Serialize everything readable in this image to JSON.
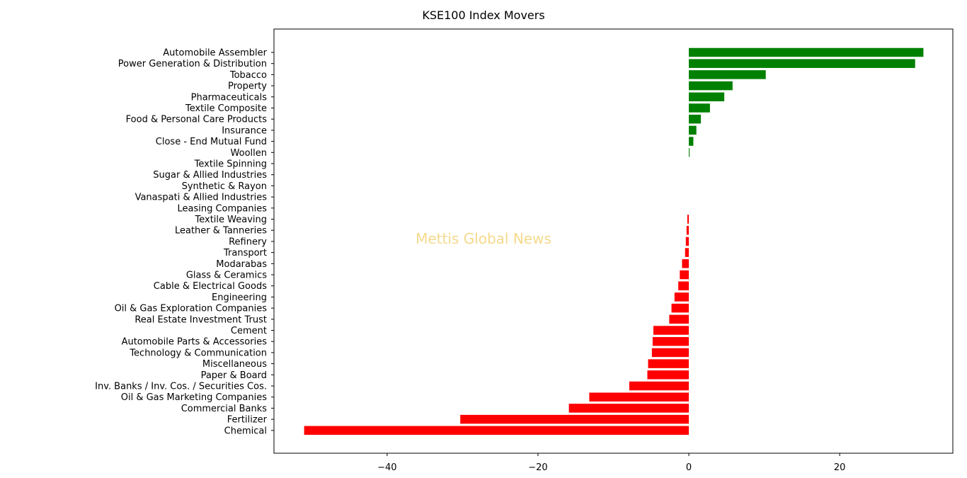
{
  "chart_data": {
    "type": "bar",
    "orientation": "horizontal",
    "title": "KSE100 Index Movers",
    "watermark": "Mettis Global News",
    "xlabel": "",
    "ylabel": "",
    "xlim": [
      -55,
      35
    ],
    "xticks": [
      -40,
      -20,
      0,
      20
    ],
    "xtick_labels": [
      "−40",
      "−20",
      "0",
      "20"
    ],
    "grid": false,
    "positive_color": "#008000",
    "negative_color": "#ff0000",
    "watermark_color": "#f5d98b",
    "categories": [
      "Automobile Assembler",
      "Power Generation & Distribution",
      "Tobacco",
      "Property",
      "Pharmaceuticals",
      "Textile Composite",
      "Food & Personal Care Products",
      "Insurance",
      "Close - End Mutual Fund",
      "Woollen",
      "Textile Spinning",
      "Sugar & Allied Industries",
      "Synthetic & Rayon",
      "Vanaspati & Allied Industries",
      "Leasing Companies",
      "Textile Weaving",
      "Leather & Tanneries",
      "Refinery",
      "Transport",
      "Modarabas",
      "Glass & Ceramics",
      "Cable & Electrical Goods",
      "Engineering",
      "Oil & Gas Exploration Companies",
      "Real Estate Investment Trust",
      "Cement",
      "Automobile Parts & Accessories",
      "Technology & Communication",
      "Miscellaneous",
      "Paper & Board",
      "Inv. Banks / Inv. Cos. / Securities Cos.",
      "Oil & Gas Marketing Companies",
      "Commercial Banks",
      "Fertilizer",
      "Chemical"
    ],
    "values": [
      31.1,
      30.0,
      10.2,
      5.8,
      4.7,
      2.8,
      1.6,
      1.0,
      0.6,
      0.1,
      0,
      0,
      0,
      0,
      0,
      -0.2,
      -0.3,
      -0.4,
      -0.5,
      -0.9,
      -1.2,
      -1.4,
      -1.9,
      -2.3,
      -2.6,
      -4.7,
      -4.8,
      -4.9,
      -5.4,
      -5.5,
      -7.9,
      -13.2,
      -15.9,
      -30.3,
      -51.0
    ]
  }
}
